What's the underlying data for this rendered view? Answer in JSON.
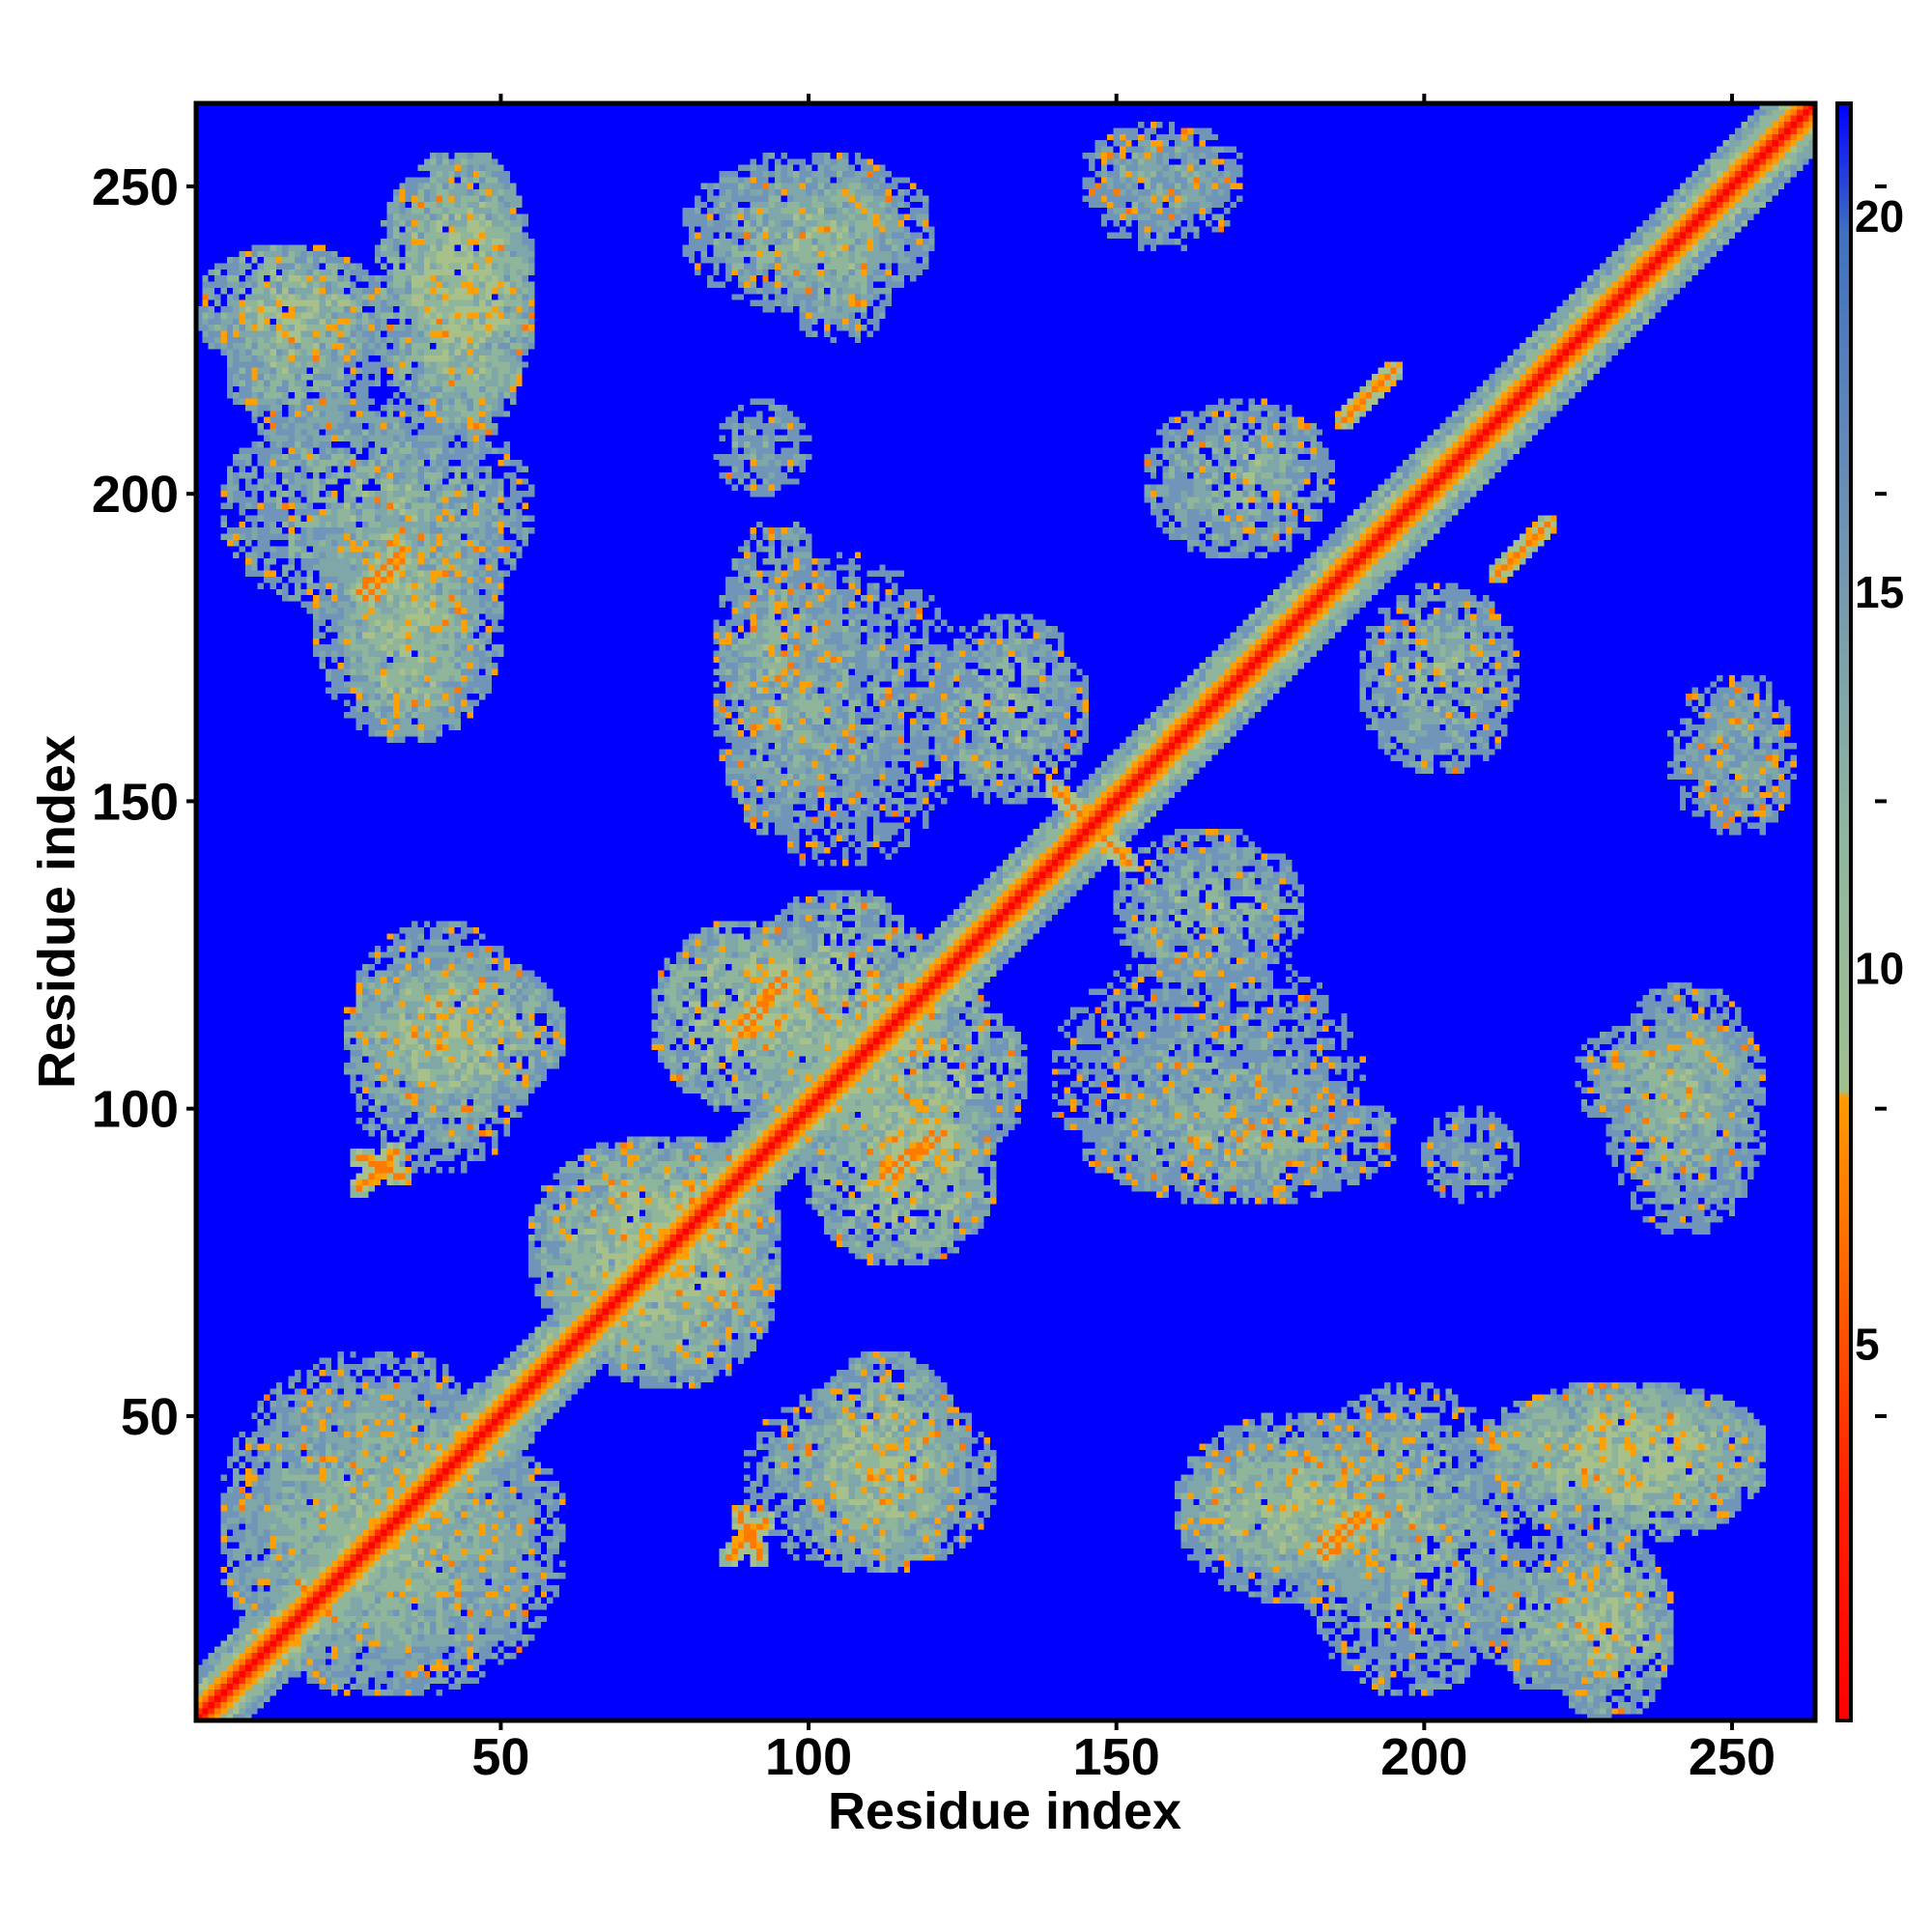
{
  "chart_data": {
    "type": "heatmap",
    "title": "",
    "xlabel": "Residue index",
    "ylabel": "Residue index",
    "xlim": [
      1,
      263
    ],
    "ylim": [
      1,
      263
    ],
    "x_ticks": [
      "50",
      "100",
      "150",
      "200",
      "250"
    ],
    "y_ticks": [
      "50",
      "100",
      "150",
      "200",
      "250"
    ],
    "x_tick_values": [
      50,
      100,
      150,
      200,
      250
    ],
    "y_tick_values": [
      50,
      100,
      150,
      200,
      250
    ],
    "colorbar": {
      "range": [
        0,
        21.5
      ],
      "ticks": [
        "5",
        "10",
        "15",
        "20"
      ],
      "tick_values": [
        5,
        10,
        15,
        20
      ],
      "colors": [
        "#ff0000",
        "#ff8c00",
        "#8fbc8f",
        "#4682b4",
        "#0000ff"
      ]
    },
    "symmetric": true,
    "contact_blocks": [
      {
        "x": [
          1,
          30
        ],
        "y": [
          220,
          240
        ],
        "value": 10
      },
      {
        "x": [
          30,
          55
        ],
        "y": [
          210,
          255
        ],
        "value": 10
      },
      {
        "x": [
          5,
          55
        ],
        "y": [
          180,
          215
        ],
        "value": 11
      },
      {
        "x": [
          20,
          50
        ],
        "y": [
          160,
          200
        ],
        "value": 11
      },
      {
        "x": [
          80,
          120
        ],
        "y": [
          230,
          255
        ],
        "value": 11
      },
      {
        "x": [
          145,
          170
        ],
        "y": [
          240,
          260
        ],
        "value": 12
      },
      {
        "x": [
          85,
          125
        ],
        "y": [
          140,
          190
        ],
        "value": 12
      },
      {
        "x": [
          120,
          145
        ],
        "y": [
          150,
          180
        ],
        "value": 11
      },
      {
        "x": [
          155,
          185
        ],
        "y": [
          190,
          215
        ],
        "value": 11
      },
      {
        "x": [
          25,
          60
        ],
        "y": [
          100,
          125
        ],
        "value": 10
      },
      {
        "x": [
          75,
          105
        ],
        "y": [
          100,
          130
        ],
        "value": 10
      },
      {
        "x": [
          100,
          135
        ],
        "y": [
          90,
          120
        ],
        "value": 10
      },
      {
        "x": [
          145,
          195
        ],
        "y": [
          85,
          105
        ],
        "value": 11
      },
      {
        "x": [
          200,
          215
        ],
        "y": [
          85,
          100
        ],
        "value": 12
      },
      {
        "x": [
          225,
          255
        ],
        "y": [
          95,
          115
        ],
        "value": 11
      },
      {
        "x": [
          5,
          60
        ],
        "y": [
          5,
          55
        ],
        "value": 11
      },
      {
        "x": [
          60,
          95
        ],
        "y": [
          55,
          95
        ],
        "value": 10
      },
      {
        "x": [
          90,
          130
        ],
        "y": [
          25,
          55
        ],
        "value": 11
      },
      {
        "x": [
          160,
          195
        ],
        "y": [
          25,
          45
        ],
        "value": 10
      },
      {
        "x": [
          210,
          255
        ],
        "y": [
          35,
          55
        ],
        "value": 10
      },
      {
        "x": [
          210,
          235
        ],
        "y": [
          5,
          30
        ],
        "value": 11
      },
      {
        "x": [
          245,
          260
        ],
        "y": [
          145,
          170
        ],
        "value": 12
      }
    ],
    "beta_contacts": [
      {
        "x": [
          27,
          34
        ],
        "y": [
          92,
          89
        ],
        "value": 4
      },
      {
        "x": [
          87,
          93
        ],
        "y": [
          27,
          33
        ],
        "value": 4
      },
      {
        "x": [
          183,
          189
        ],
        "y": [
          28,
          34
        ],
        "value": 4
      },
      {
        "x": [
          27,
          34
        ],
        "y": [
          184,
          191
        ],
        "value": 4
      },
      {
        "x": [
          89,
          96
        ],
        "y": [
          112,
          120
        ],
        "value": 4
      },
      {
        "x": [
          114,
          122
        ],
        "y": [
          89,
          96
        ],
        "value": 4
      },
      {
        "x": [
          187,
          195
        ],
        "y": [
          212,
          220
        ],
        "value": 4
      },
      {
        "x": [
          212,
          220
        ],
        "y": [
          187,
          195
        ],
        "value": 4
      },
      {
        "x": [
          140,
          152
        ],
        "y": [
          152,
          140
        ],
        "value": 4
      }
    ]
  }
}
